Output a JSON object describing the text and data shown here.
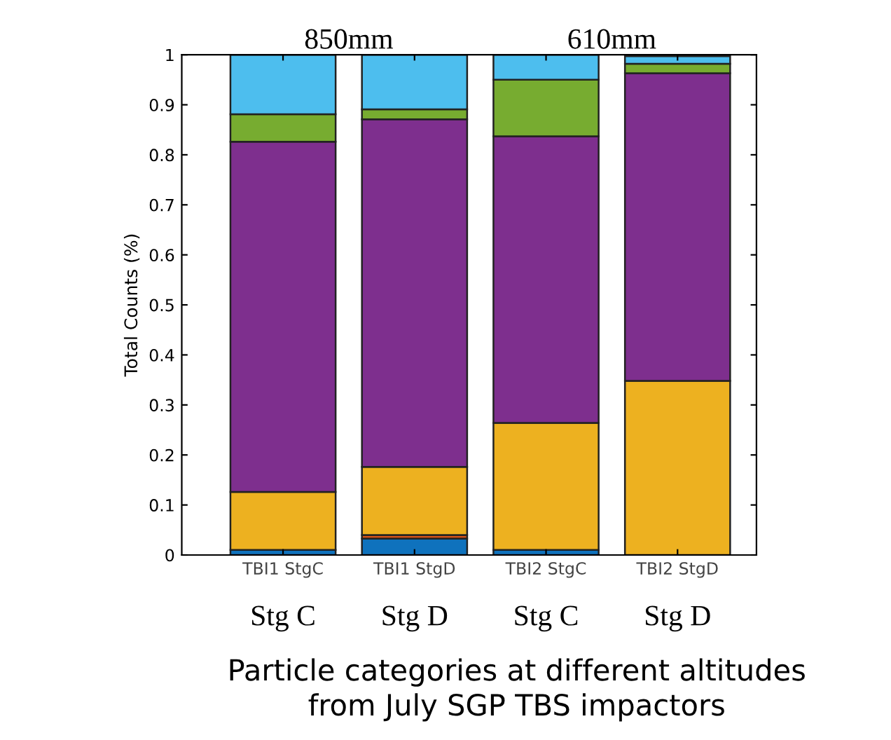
{
  "chart_data": {
    "type": "bar",
    "stacked": true,
    "categories": [
      "TBI1 StgC",
      "TBI1 StgD",
      "TBI2 StgC",
      "TBI2 StgD"
    ],
    "series": [
      {
        "color": "#0f72bd",
        "values": [
          0.01,
          0.033,
          0.01,
          null
        ]
      },
      {
        "color": "#d95319",
        "values": [
          0,
          0.007,
          0,
          0
        ]
      },
      {
        "color": "#edb120",
        "values": [
          0.116,
          0.136,
          0.254,
          0.348
        ]
      },
      {
        "color": "#7e2f8e",
        "values": [
          0.7,
          0.695,
          0.573,
          0.615
        ]
      },
      {
        "color": "#77ac30",
        "values": [
          0.055,
          0.02,
          0.113,
          0.019
        ]
      },
      {
        "color": "#4dbeee",
        "values": [
          0.119,
          0.109,
          0.05,
          0.015
        ]
      }
    ],
    "ylim": [
      0,
      1
    ],
    "yticks": [
      0,
      0.1,
      0.2,
      0.3,
      0.4,
      0.5,
      0.6,
      0.7,
      0.8,
      0.9,
      1
    ],
    "ylabel": "Total Counts (%)",
    "xlabel": "Particle categories at different altitudes\nfrom July SGP TBS impactors",
    "annotations": [
      "850mm",
      "610mm",
      "Stg C",
      "Stg D",
      "Stg C",
      "Stg D"
    ],
    "grid": false,
    "legend": false
  }
}
